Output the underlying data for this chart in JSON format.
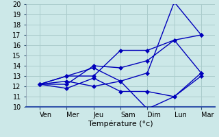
{
  "title": "Température (°c)",
  "bg_color": "#cce8e8",
  "grid_color": "#aacccc",
  "line_color": "#0000bb",
  "x_labels": [
    "Ven",
    "Mer",
    "Jeu",
    "Sam",
    "Dim",
    "Lun",
    "Mar"
  ],
  "x_positions": [
    0,
    1,
    2,
    3,
    4,
    5,
    6
  ],
  "ylim": [
    10,
    20
  ],
  "yticks": [
    10,
    11,
    12,
    13,
    14,
    15,
    16,
    17,
    18,
    19,
    20
  ],
  "series": [
    [
      12.2,
      12.5,
      12.0,
      12.5,
      9.8,
      11.0,
      13.3
    ],
    [
      12.2,
      11.8,
      12.8,
      11.5,
      11.5,
      11.0,
      13.0
    ],
    [
      12.2,
      13.0,
      13.0,
      15.5,
      15.5,
      16.5,
      13.3
    ],
    [
      12.2,
      13.0,
      13.8,
      12.5,
      13.3,
      20.2,
      17.0
    ],
    [
      12.2,
      12.2,
      14.0,
      13.8,
      14.5,
      16.5,
      17.0
    ]
  ],
  "xlabel_fontsize": 8,
  "tick_fontsize": 7,
  "linewidth": 1.0,
  "markersize": 3
}
